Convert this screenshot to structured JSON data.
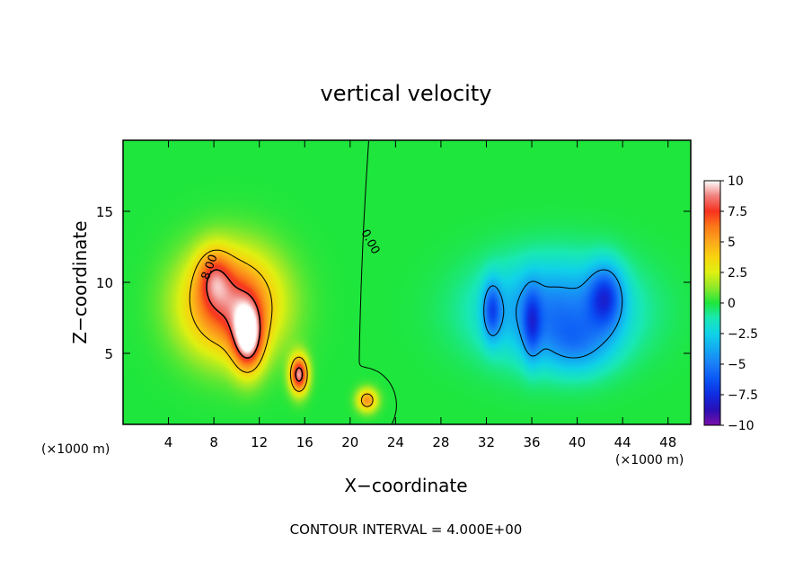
{
  "chart_data": {
    "type": "heatmap",
    "title": "vertical velocity",
    "xlabel": "X−coordinate",
    "ylabel": "Z−coordinate",
    "x_unit_left": "(×1000 m)",
    "x_unit_right": "(×1000 m)",
    "xlim": [
      0,
      50
    ],
    "ylim": [
      0,
      20
    ],
    "x_ticks": [
      4,
      8,
      12,
      16,
      20,
      24,
      28,
      32,
      36,
      40,
      44,
      48
    ],
    "y_ticks": [
      5,
      10,
      15
    ],
    "zlim": [
      -10,
      10
    ],
    "colorbar_ticks": [
      "10",
      "7.5",
      "5",
      "2.5",
      "0",
      "−2.5",
      "−5",
      "−7.5",
      "−10"
    ],
    "contour_interval_text": "CONTOUR INTERVAL = 4.000E+00",
    "contour_labels": [
      "8.00",
      "0.00"
    ],
    "grid": false,
    "colorbar_placement": "right",
    "sources": [
      {
        "x": 9.5,
        "z": 8.5,
        "amp": 8.0,
        "sx": 4.2,
        "sz": 3.6
      },
      {
        "x": 11.0,
        "z": 6.0,
        "amp": 8.0,
        "sx": 1.3,
        "sz": 2.3
      },
      {
        "x": 8.0,
        "z": 10.5,
        "amp": 3.5,
        "sx": 1.5,
        "sz": 2.0
      },
      {
        "x": 15.5,
        "z": 3.5,
        "amp": 9.0,
        "sx": 0.8,
        "sz": 1.3
      },
      {
        "x": 21.5,
        "z": 1.7,
        "amp": 5.5,
        "sx": 0.9,
        "sz": 0.8
      },
      {
        "x": 38.0,
        "z": 8.0,
        "amp": -5.0,
        "sx": 6.5,
        "sz": 3.5
      },
      {
        "x": 32.5,
        "z": 8.0,
        "amp": -4.5,
        "sx": 0.8,
        "sz": 2.0
      },
      {
        "x": 36.0,
        "z": 7.0,
        "amp": -3.5,
        "sx": 0.8,
        "sz": 2.5
      },
      {
        "x": 42.5,
        "z": 9.0,
        "amp": -5.0,
        "sx": 1.5,
        "sz": 2.2
      },
      {
        "x": 40.0,
        "z": 5.5,
        "amp": -2.5,
        "sx": 3.0,
        "sz": 2.0
      }
    ],
    "colormap": [
      [
        -10,
        "#7a0fa8"
      ],
      [
        -8.75,
        "#2a0fb5"
      ],
      [
        -7.5,
        "#0f2ce0"
      ],
      [
        -6.25,
        "#0a55f5"
      ],
      [
        -5,
        "#1a7ef7"
      ],
      [
        -3.75,
        "#13a9f2"
      ],
      [
        -2.5,
        "#10d2e8"
      ],
      [
        -1.25,
        "#19e8b4"
      ],
      [
        0,
        "#1ee63c"
      ],
      [
        1.25,
        "#8ee82a"
      ],
      [
        2.5,
        "#dff012"
      ],
      [
        3.75,
        "#f8d40e"
      ],
      [
        5,
        "#fba81c"
      ],
      [
        6.25,
        "#fb7818"
      ],
      [
        7.5,
        "#f7321e"
      ],
      [
        8.75,
        "#f0807c"
      ],
      [
        10,
        "#ffffff"
      ]
    ]
  }
}
